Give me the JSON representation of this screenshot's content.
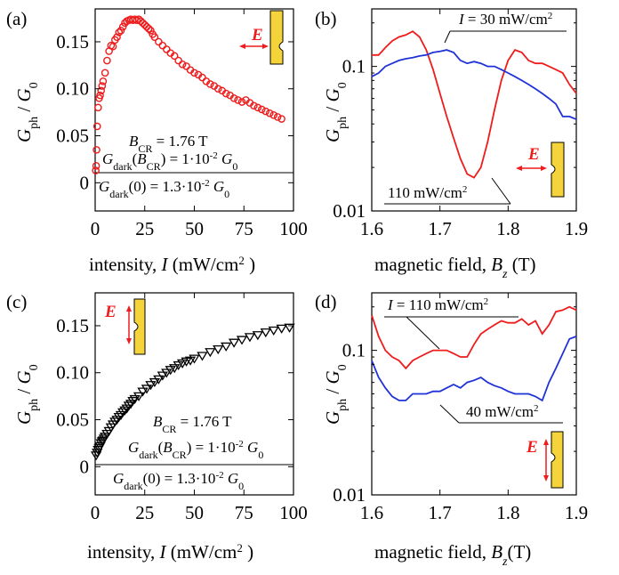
{
  "panels": {
    "a": {
      "label": "(a)",
      "bcr": "B_CR = 1.76 T",
      "gdark_bcr": "G_dark(B_CR) = 1·10^-2 G_0",
      "gdark_0": "G_dark(0) = 1.3·10^-2 G_0",
      "efield": "E"
    },
    "b": {
      "label": "(b)",
      "ann_red": "110 mW/cm^2",
      "ann_blue": "I = 30 mW/cm^2",
      "efield": "E"
    },
    "c": {
      "label": "(c)",
      "bcr": "B_CR = 1.76 T",
      "gdark_bcr": "G_dark(B_CR) = 1·10^-2 G_0",
      "gdark_0": "G_dark(0) = 1.3·10^-2 G_0",
      "efield": "E"
    },
    "d": {
      "label": "(d)",
      "ann_red": "I = 110 mW/cm^2",
      "ann_blue": "40 mW/cm^2",
      "efield": "E"
    }
  },
  "axis_text": {
    "intensity_xlabel": "intensity, I (mW/cm^2 )",
    "field_xlabel": "magnetic field, B_z (T)",
    "ylabel": "G_ph / G_0"
  },
  "chart_data": [
    {
      "id": "a",
      "type": "scatter",
      "xlim": [
        0,
        100
      ],
      "ylim": [
        -0.03,
        0.185
      ],
      "xticks": [
        0,
        25,
        50,
        75,
        100
      ],
      "yticks": [
        0,
        0.05,
        0.1,
        0.15
      ],
      "xticklabels": [
        "0",
        "25",
        "50",
        "75",
        "100"
      ],
      "yticklabels": [
        "0",
        "0.05",
        "0.10",
        "0.15"
      ],
      "marker": "circle",
      "color": "#ee1c1c",
      "x": [
        0.3,
        0.5,
        0.7,
        1,
        1.5,
        2,
        2.5,
        3,
        3.5,
        4,
        5,
        6,
        7,
        8,
        9,
        10,
        11,
        12,
        13,
        14,
        15,
        16,
        17,
        18,
        19,
        20,
        21,
        22,
        23,
        24,
        25,
        26,
        27,
        28,
        29,
        30,
        32,
        34,
        36,
        38,
        40,
        42,
        44,
        46,
        48,
        50,
        52,
        54,
        56,
        58,
        60,
        62,
        64,
        66,
        68,
        70,
        72,
        74,
        76,
        78,
        80,
        82,
        84,
        86,
        88,
        90,
        92,
        94
      ],
      "y": [
        0.013,
        0.018,
        0.035,
        0.06,
        0.08,
        0.09,
        0.093,
        0.098,
        0.103,
        0.108,
        0.117,
        0.13,
        0.14,
        0.146,
        0.145,
        0.152,
        0.155,
        0.16,
        0.162,
        0.166,
        0.17,
        0.172,
        0.173,
        0.174,
        0.173,
        0.174,
        0.173,
        0.174,
        0.172,
        0.17,
        0.168,
        0.166,
        0.164,
        0.162,
        0.158,
        0.155,
        0.15,
        0.146,
        0.142,
        0.138,
        0.135,
        0.13,
        0.126,
        0.124,
        0.12,
        0.117,
        0.115,
        0.112,
        0.108,
        0.105,
        0.103,
        0.1,
        0.098,
        0.095,
        0.093,
        0.09,
        0.088,
        0.086,
        0.088,
        0.085,
        0.082,
        0.08,
        0.078,
        0.076,
        0.074,
        0.072,
        0.07,
        0.068
      ]
    },
    {
      "id": "b",
      "type": "line",
      "xlim": [
        1.6,
        1.9
      ],
      "ylim": [
        0.01,
        0.25
      ],
      "yscale": "log",
      "xticks": [
        1.6,
        1.7,
        1.8,
        1.9
      ],
      "yticks": [
        0.01,
        0.1
      ],
      "xticklabels": [
        "1.6",
        "1.7",
        "1.8",
        "1.9"
      ],
      "yticklabels": [
        "0.01",
        "0.1"
      ],
      "series": [
        {
          "name": "110 mW/cm^2",
          "color": "#ee1c1c",
          "x": [
            1.6,
            1.61,
            1.62,
            1.63,
            1.64,
            1.65,
            1.66,
            1.67,
            1.68,
            1.69,
            1.7,
            1.71,
            1.72,
            1.73,
            1.74,
            1.75,
            1.76,
            1.77,
            1.78,
            1.79,
            1.8,
            1.81,
            1.82,
            1.83,
            1.84,
            1.85,
            1.86,
            1.87,
            1.88,
            1.89,
            1.9
          ],
          "y": [
            0.12,
            0.12,
            0.135,
            0.15,
            0.16,
            0.165,
            0.175,
            0.16,
            0.13,
            0.095,
            0.065,
            0.045,
            0.032,
            0.023,
            0.018,
            0.017,
            0.02,
            0.03,
            0.05,
            0.08,
            0.11,
            0.13,
            0.125,
            0.11,
            0.105,
            0.105,
            0.1,
            0.095,
            0.09,
            0.075,
            0.065
          ]
        },
        {
          "name": "I = 30 mW/cm^2",
          "color": "#1f32d8",
          "x": [
            1.6,
            1.61,
            1.62,
            1.63,
            1.64,
            1.65,
            1.66,
            1.67,
            1.68,
            1.69,
            1.7,
            1.71,
            1.72,
            1.73,
            1.74,
            1.75,
            1.76,
            1.77,
            1.78,
            1.79,
            1.8,
            1.81,
            1.82,
            1.83,
            1.84,
            1.85,
            1.86,
            1.87,
            1.88,
            1.89,
            1.9
          ],
          "y": [
            0.085,
            0.09,
            0.1,
            0.105,
            0.11,
            0.113,
            0.115,
            0.118,
            0.12,
            0.125,
            0.127,
            0.13,
            0.125,
            0.11,
            0.105,
            0.108,
            0.105,
            0.1,
            0.1,
            0.095,
            0.09,
            0.085,
            0.08,
            0.075,
            0.07,
            0.065,
            0.06,
            0.055,
            0.045,
            0.045,
            0.043
          ]
        }
      ]
    },
    {
      "id": "c",
      "type": "scatter",
      "xlim": [
        0,
        100
      ],
      "ylim": [
        -0.03,
        0.185
      ],
      "xticks": [
        0,
        25,
        50,
        75,
        100
      ],
      "yticks": [
        0,
        0.05,
        0.1,
        0.15
      ],
      "xticklabels": [
        "0",
        "25",
        "50",
        "75",
        "100"
      ],
      "yticklabels": [
        "0",
        "0.05",
        "0.10",
        "0.15"
      ],
      "marker": "triangle-down",
      "color": "#000000",
      "x": [
        0.5,
        1,
        1.5,
        2,
        2.5,
        3,
        3.5,
        4,
        4.5,
        5,
        6,
        7,
        8,
        9,
        10,
        11,
        12,
        13,
        14,
        15,
        16,
        17,
        18,
        19,
        20,
        22,
        24,
        26,
        28,
        30,
        32,
        34,
        36,
        38,
        40,
        42,
        44,
        46,
        48,
        50,
        54,
        58,
        62,
        66,
        70,
        74,
        78,
        82,
        86,
        90,
        94,
        98
      ],
      "y": [
        0.012,
        0.015,
        0.018,
        0.02,
        0.022,
        0.025,
        0.027,
        0.028,
        0.03,
        0.032,
        0.035,
        0.038,
        0.042,
        0.045,
        0.048,
        0.05,
        0.053,
        0.055,
        0.058,
        0.06,
        0.062,
        0.065,
        0.067,
        0.07,
        0.072,
        0.075,
        0.08,
        0.083,
        0.087,
        0.09,
        0.093,
        0.097,
        0.1,
        0.103,
        0.105,
        0.108,
        0.11,
        0.112,
        0.113,
        0.115,
        0.118,
        0.122,
        0.125,
        0.128,
        0.132,
        0.135,
        0.138,
        0.14,
        0.143,
        0.145,
        0.147,
        0.148
      ]
    },
    {
      "id": "d",
      "type": "line",
      "xlim": [
        1.6,
        1.9
      ],
      "ylim": [
        0.01,
        0.25
      ],
      "yscale": "log",
      "xticks": [
        1.6,
        1.7,
        1.8,
        1.9
      ],
      "yticks": [
        0.01,
        0.1
      ],
      "xticklabels": [
        "1.6",
        "1.7",
        "1.8",
        "1.9"
      ],
      "yticklabels": [
        "0.01",
        "0.1"
      ],
      "series": [
        {
          "name": "I = 110 mW/cm^2",
          "color": "#ee1c1c",
          "x": [
            1.6,
            1.61,
            1.62,
            1.63,
            1.64,
            1.65,
            1.66,
            1.67,
            1.68,
            1.69,
            1.7,
            1.71,
            1.72,
            1.73,
            1.74,
            1.75,
            1.76,
            1.77,
            1.78,
            1.79,
            1.8,
            1.81,
            1.82,
            1.83,
            1.84,
            1.85,
            1.86,
            1.87,
            1.88,
            1.89,
            1.9
          ],
          "y": [
            0.175,
            0.125,
            0.1,
            0.09,
            0.085,
            0.075,
            0.085,
            0.09,
            0.095,
            0.1,
            0.1,
            0.1,
            0.095,
            0.09,
            0.09,
            0.11,
            0.13,
            0.14,
            0.15,
            0.16,
            0.155,
            0.155,
            0.165,
            0.15,
            0.16,
            0.13,
            0.15,
            0.185,
            0.19,
            0.2,
            0.19
          ]
        },
        {
          "name": "40 mW/cm^2",
          "color": "#1f32d8",
          "x": [
            1.6,
            1.61,
            1.62,
            1.63,
            1.64,
            1.65,
            1.66,
            1.67,
            1.68,
            1.69,
            1.7,
            1.71,
            1.72,
            1.73,
            1.74,
            1.75,
            1.76,
            1.77,
            1.78,
            1.79,
            1.8,
            1.81,
            1.82,
            1.83,
            1.84,
            1.85,
            1.86,
            1.87,
            1.88,
            1.89,
            1.9
          ],
          "y": [
            0.085,
            0.065,
            0.055,
            0.048,
            0.045,
            0.045,
            0.05,
            0.05,
            0.05,
            0.052,
            0.052,
            0.055,
            0.058,
            0.055,
            0.06,
            0.062,
            0.065,
            0.06,
            0.057,
            0.055,
            0.052,
            0.05,
            0.05,
            0.05,
            0.048,
            0.045,
            0.06,
            0.075,
            0.095,
            0.12,
            0.125
          ]
        }
      ]
    }
  ]
}
